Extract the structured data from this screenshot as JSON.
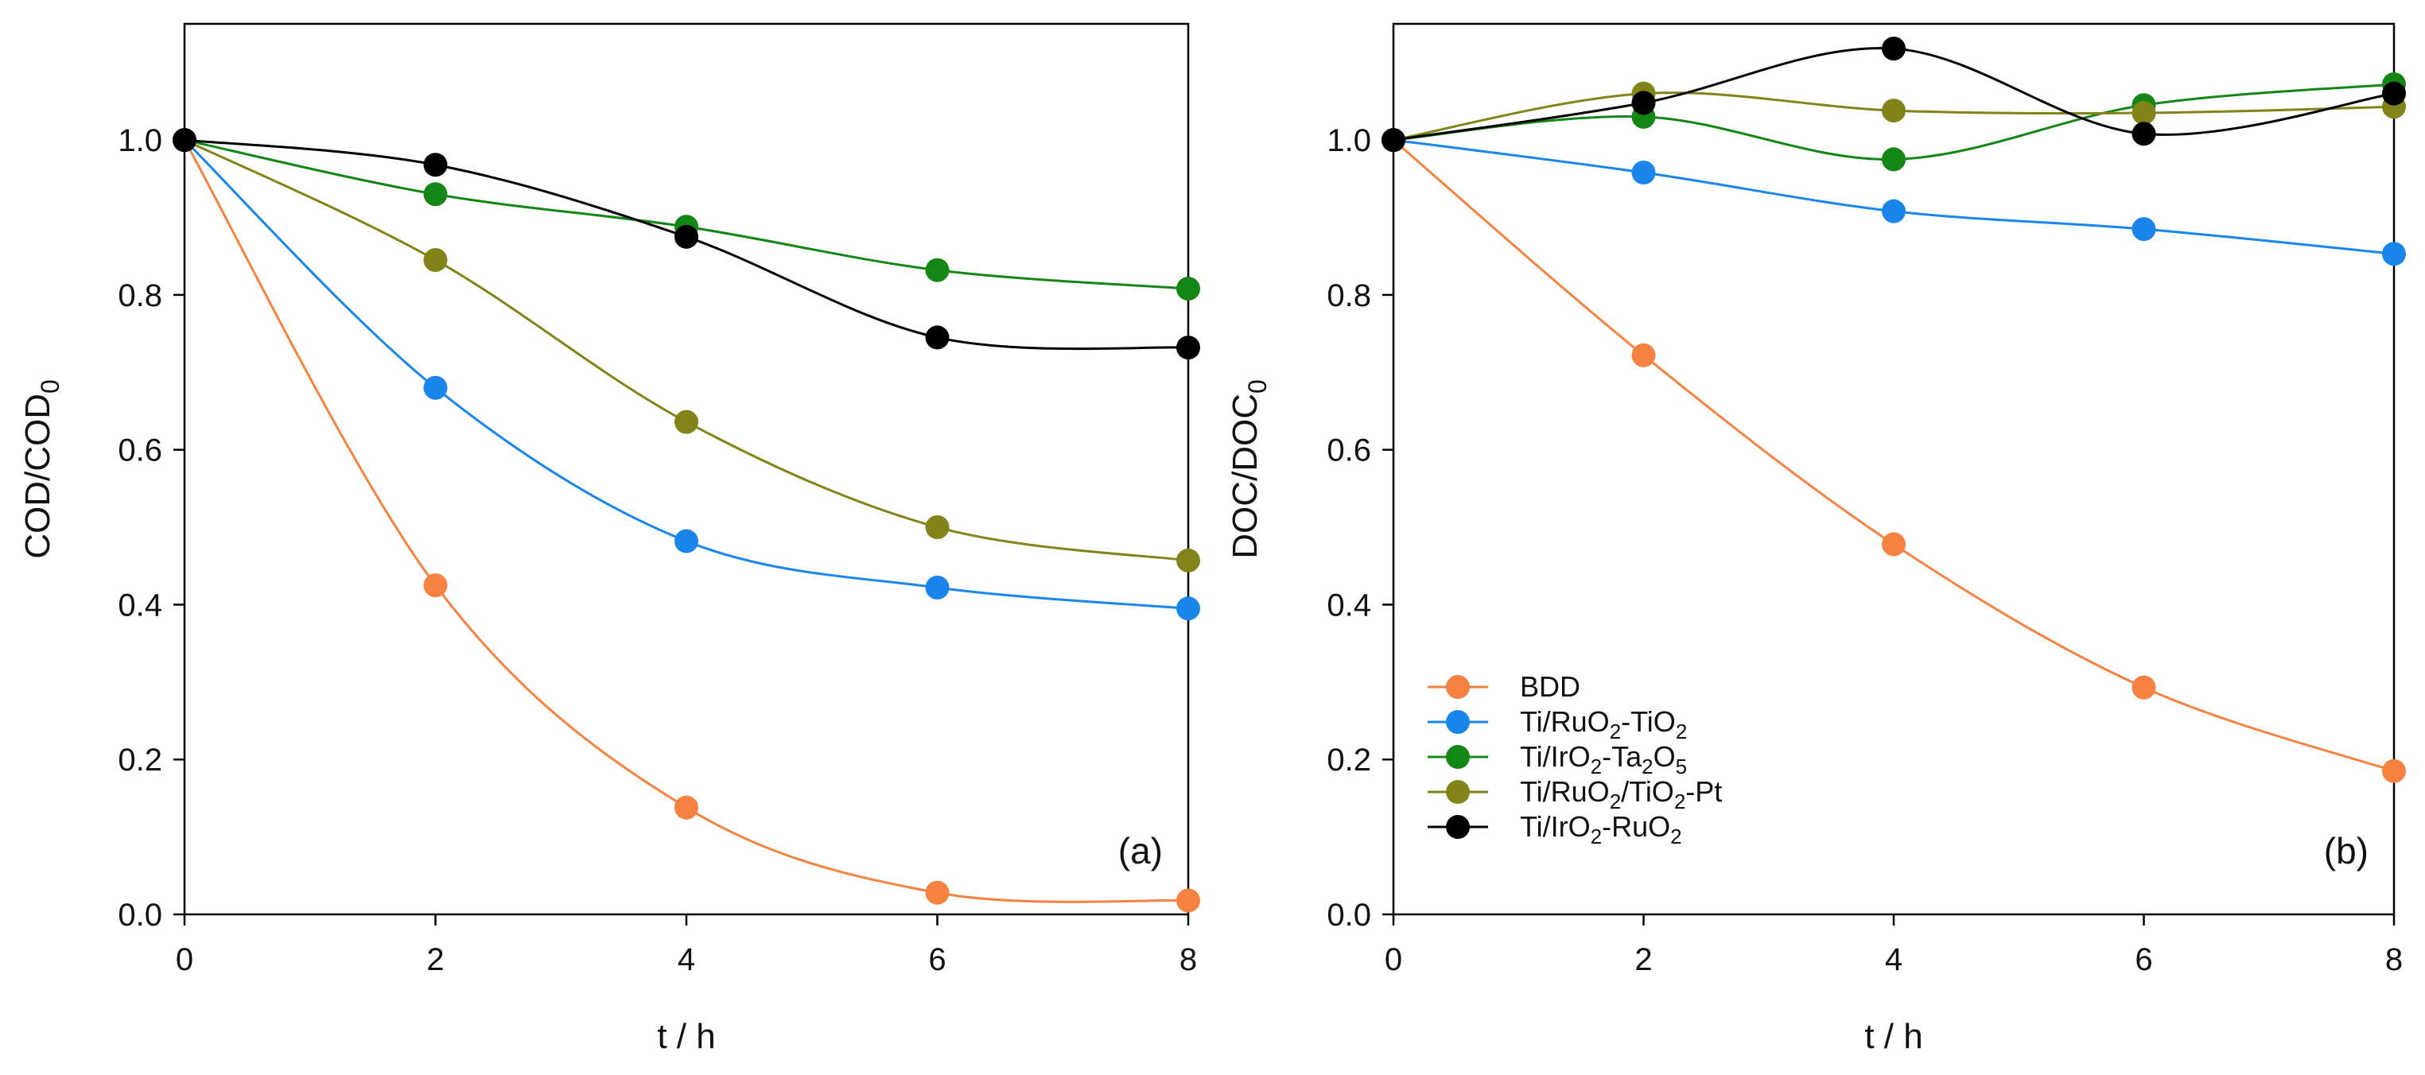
{
  "chart_data": [
    {
      "type": "line",
      "panel_label": "(a)",
      "xlabel": "t / h",
      "ylabel": "COD/COD",
      "ylabel_sub": "0",
      "xlim": [
        0,
        8
      ],
      "ylim": [
        0.0,
        1.15
      ],
      "xticks": [
        0,
        2,
        4,
        6,
        8
      ],
      "xtick_labels": [
        "0",
        "2",
        "4",
        "6",
        "8"
      ],
      "yticks": [
        0.0,
        0.2,
        0.4,
        0.6,
        0.8,
        1.0
      ],
      "ytick_labels": [
        "0.0",
        "0.2",
        "0.4",
        "0.6",
        "0.8",
        "1.0"
      ],
      "x": [
        0,
        2,
        4,
        6,
        8
      ],
      "series": [
        {
          "name": "BDD",
          "color": "#f58240",
          "values": [
            1.0,
            0.425,
            0.138,
            0.028,
            0.018
          ]
        },
        {
          "name": "Ti/RuO2-TiO2",
          "color": "#1a86ec",
          "values": [
            1.0,
            0.68,
            0.482,
            0.422,
            0.395
          ]
        },
        {
          "name": "Ti/IrO2-Ta2O5",
          "color": "#138615",
          "values": [
            1.0,
            0.93,
            0.888,
            0.832,
            0.808
          ]
        },
        {
          "name": "Ti/RuO2/TiO2-Pt",
          "color": "#82841a",
          "values": [
            1.0,
            0.845,
            0.636,
            0.5,
            0.457
          ]
        },
        {
          "name": "Ti/IrO2-RuO2",
          "color": "#000000",
          "values": [
            1.0,
            0.968,
            0.875,
            0.745,
            0.732
          ]
        }
      ]
    },
    {
      "type": "line",
      "panel_label": "(b)",
      "xlabel": "t / h",
      "ylabel": "DOC/DOC",
      "ylabel_sub": "0",
      "xlim": [
        0,
        8
      ],
      "ylim": [
        0.0,
        1.15
      ],
      "xticks": [
        0,
        2,
        4,
        6,
        8
      ],
      "xtick_labels": [
        "0",
        "2",
        "4",
        "6",
        "8"
      ],
      "yticks": [
        0.0,
        0.2,
        0.4,
        0.6,
        0.8,
        1.0
      ],
      "ytick_labels": [
        "0.0",
        "0.2",
        "0.4",
        "0.6",
        "0.8",
        "1.0"
      ],
      "x": [
        0,
        2,
        4,
        6,
        8
      ],
      "series": [
        {
          "name": "BDD",
          "color": "#f58240",
          "values": [
            1.0,
            0.722,
            0.478,
            0.293,
            0.185
          ]
        },
        {
          "name": "Ti/RuO2-TiO2",
          "color": "#1a86ec",
          "values": [
            1.0,
            0.958,
            0.908,
            0.885,
            0.853
          ]
        },
        {
          "name": "Ti/IrO2-Ta2O5",
          "color": "#138615",
          "values": [
            1.0,
            1.03,
            0.975,
            1.045,
            1.072
          ]
        },
        {
          "name": "Ti/RuO2/TiO2-Pt",
          "color": "#82841a",
          "values": [
            1.0,
            1.06,
            1.038,
            1.035,
            1.043
          ]
        },
        {
          "name": "Ti/IrO2-RuO2",
          "color": "#000000",
          "values": [
            1.0,
            1.048,
            1.118,
            1.008,
            1.06
          ]
        }
      ],
      "legend": {
        "placement": "bottom-left",
        "entries": [
          {
            "prefix": "BDD",
            "color": "#f58240",
            "parts": [
              {
                "t": "BDD"
              }
            ]
          },
          {
            "prefix": "Ti/RuO2-TiO2",
            "color": "#1a86ec",
            "parts": [
              {
                "t": "Ti/RuO"
              },
              {
                "s": "2"
              },
              {
                "t": "-TiO"
              },
              {
                "s": "2"
              }
            ]
          },
          {
            "prefix": "Ti/IrO2-Ta2O5",
            "color": "#138615",
            "parts": [
              {
                "t": "Ti/IrO"
              },
              {
                "s": "2"
              },
              {
                "t": "-Ta"
              },
              {
                "s": "2"
              },
              {
                "t": "O"
              },
              {
                "s": "5"
              }
            ]
          },
          {
            "prefix": "Ti/RuO2/TiO2-Pt",
            "color": "#82841a",
            "parts": [
              {
                "t": "Ti/RuO"
              },
              {
                "s": "2"
              },
              {
                "t": "/TiO"
              },
              {
                "s": "2"
              },
              {
                "t": "-Pt"
              }
            ]
          },
          {
            "prefix": "Ti/IrO2-RuO2",
            "color": "#000000",
            "parts": [
              {
                "t": "Ti/IrO"
              },
              {
                "s": "2"
              },
              {
                "t": "-RuO"
              },
              {
                "s": "2"
              }
            ]
          }
        ]
      }
    }
  ]
}
